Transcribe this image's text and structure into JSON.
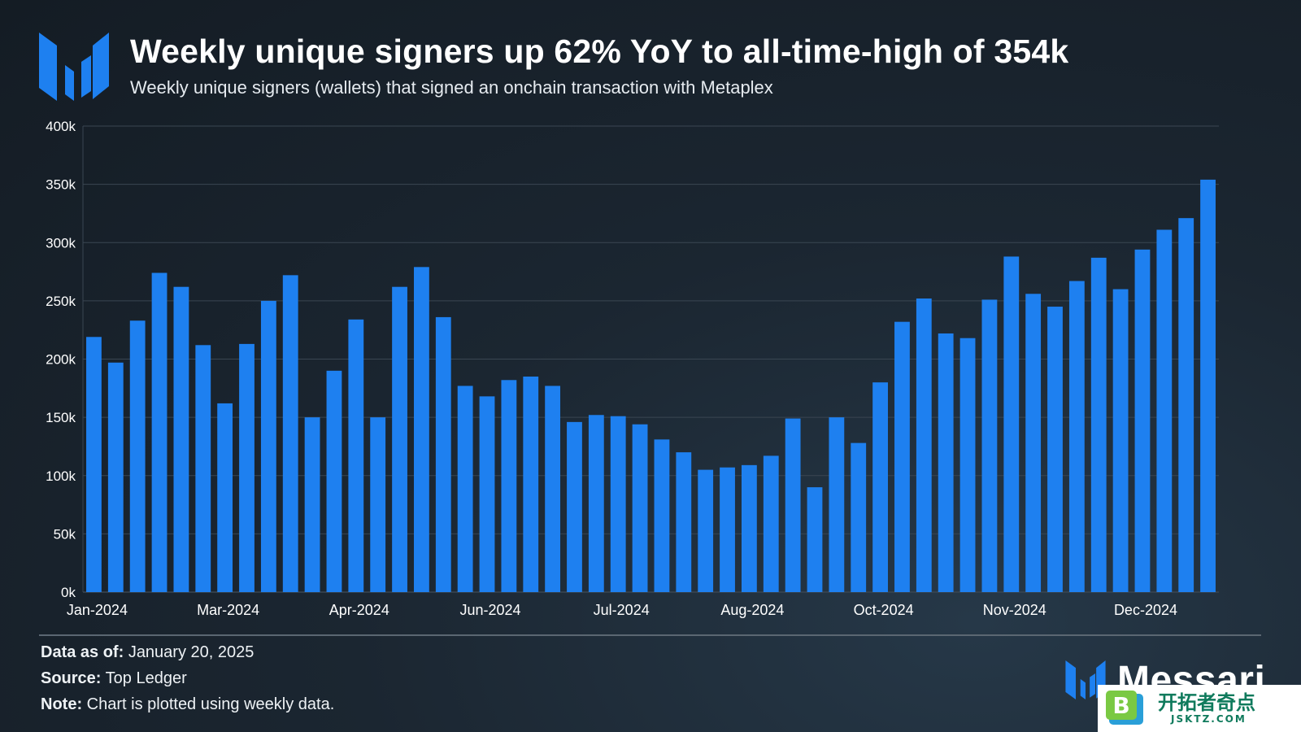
{
  "header": {
    "title": "Weekly unique signers up 62% YoY to all-time-high of 354k",
    "subtitle": "Weekly unique signers (wallets) that signed an onchain transaction with Metaplex"
  },
  "footer": {
    "data_as_of_label": "Data as of:",
    "data_as_of_value": "January 20, 2025",
    "source_label": "Source:",
    "source_value": "Top Ledger",
    "note_label": "Note:",
    "note_value": "Chart is plotted using weekly data."
  },
  "brand": {
    "name": "Messari"
  },
  "watermark": {
    "cn": "开拓者奇点",
    "en": "JSKTZ.COM"
  },
  "colors": {
    "bar": "#1e80f0",
    "grid": "#3a4652",
    "axis_text": "#ffffff",
    "logo": "#1e80f0"
  },
  "chart_data": {
    "type": "bar",
    "title": "Weekly unique signers up 62% YoY to all-time-high of 354k",
    "subtitle": "Weekly unique signers (wallets) that signed an onchain transaction with Metaplex",
    "xlabel": "",
    "ylabel": "",
    "ylim": [
      0,
      400000
    ],
    "yticks": [
      0,
      50000,
      100000,
      150000,
      200000,
      250000,
      300000,
      350000,
      400000
    ],
    "ytick_labels": [
      "0k",
      "50k",
      "100k",
      "150k",
      "200k",
      "250k",
      "300k",
      "350k",
      "400k"
    ],
    "xtick_labels": [
      "Jan-2024",
      "Mar-2024",
      "Apr-2024",
      "Jun-2024",
      "Jul-2024",
      "Aug-2024",
      "Oct-2024",
      "Nov-2024",
      "Dec-2024"
    ],
    "xtick_bar_index": [
      0,
      6,
      12,
      18,
      24,
      30,
      36,
      42,
      48
    ],
    "grid": true,
    "legend": "none",
    "values": [
      219000,
      197000,
      233000,
      274000,
      262000,
      212000,
      162000,
      213000,
      250000,
      272000,
      150000,
      190000,
      234000,
      150000,
      262000,
      279000,
      236000,
      177000,
      168000,
      182000,
      185000,
      177000,
      146000,
      152000,
      151000,
      144000,
      131000,
      120000,
      105000,
      107000,
      109000,
      117000,
      149000,
      90000,
      150000,
      128000,
      180000,
      232000,
      252000,
      222000,
      218000,
      251000,
      288000,
      256000,
      245000,
      267000,
      287000,
      260000,
      294000,
      311000,
      321000,
      354000
    ]
  }
}
